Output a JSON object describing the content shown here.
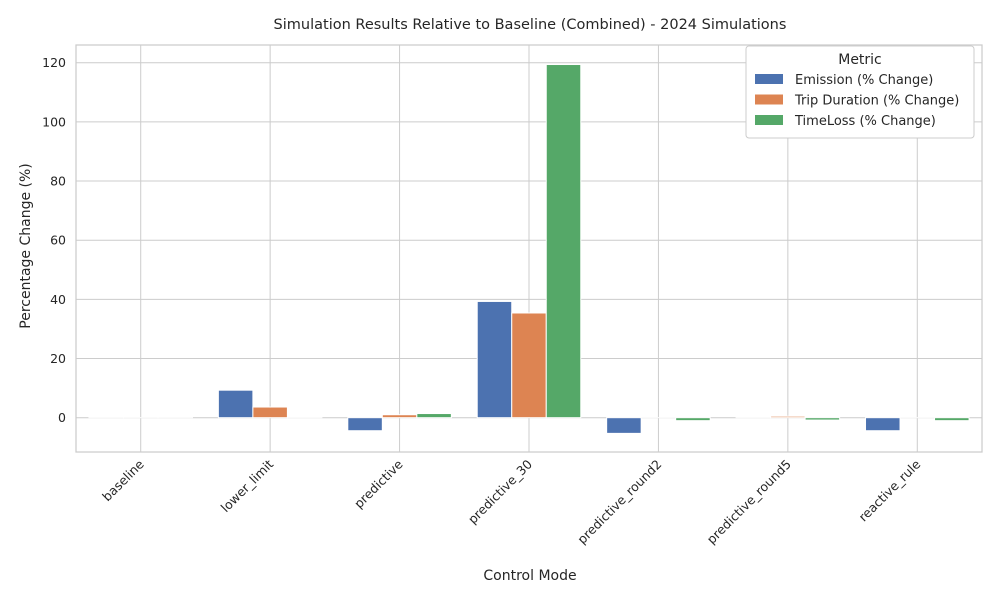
{
  "chart_data": {
    "type": "bar",
    "title": "Simulation Results Relative to Baseline (Combined) - 2024 Simulations",
    "xlabel": "Control Mode",
    "ylabel": "Percentage Change (%)",
    "categories": [
      "baseline",
      "lower_limit",
      "predictive",
      "predictive_30",
      "predictive_round2",
      "predictive_round5",
      "reactive_rule"
    ],
    "series": [
      {
        "name": "Emission (% Change)",
        "color": "#4c72b0",
        "values": [
          0,
          9.3,
          -4.4,
          39.3,
          -5.3,
          0,
          -4.4
        ]
      },
      {
        "name": "Trip Duration (% Change)",
        "color": "#dd8452",
        "values": [
          0,
          3.6,
          1.0,
          35.4,
          0,
          0.5,
          0
        ]
      },
      {
        "name": "TimeLoss (% Change)",
        "color": "#55a868",
        "values": [
          0,
          0,
          1.4,
          119.4,
          -1.0,
          -0.8,
          -1.0
        ]
      }
    ],
    "ylim": [
      -11.6,
      126.0
    ],
    "yticks": [
      0,
      20,
      40,
      60,
      80,
      100,
      120
    ],
    "grid": true,
    "legend": {
      "title": "Metric",
      "position": "top-right"
    }
  }
}
